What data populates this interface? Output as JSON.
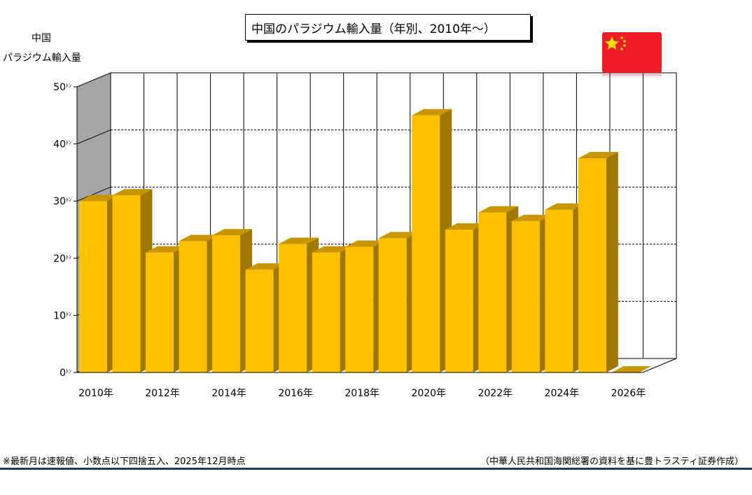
{
  "title": "中国のパラジウム輸入量（年別、2010年～）",
  "y_axis_label_line1": "中国",
  "y_axis_label_line2": "パラジウム輸入量",
  "footnote_left": "※最新月は速報値、小数点以下四捨五入、2025年12月時点",
  "footnote_right": "（中華人民共和国海関総署の資料を基に豊トラスティ証券作成）",
  "flag_icon": "china-flag-icon",
  "colors": {
    "bar_front": "#FFC000",
    "bar_side": "#A07800",
    "bar_top": "#C89600",
    "back_wall": "#FFFFFF",
    "side_wall": "#A6A6A6",
    "footer_rule": "#1F3A6B",
    "flag_red": "#EE1C25",
    "flag_star": "#FFDE00"
  },
  "chart_data": {
    "type": "bar",
    "title": "中国のパラジウム輸入量（年別、2010年～）",
    "ylabel": "中国 パラジウム輸入量",
    "unit": "トン",
    "ylim": [
      0,
      50
    ],
    "y_ticks": [
      0,
      10,
      20,
      30,
      40,
      50
    ],
    "y_tick_suffix": "ﾄﾝ",
    "x_tick_labels": [
      "2010年",
      "2012年",
      "2014年",
      "2016年",
      "2018年",
      "2020年",
      "2022年",
      "2024年",
      "2026年"
    ],
    "categories": [
      "2010",
      "2011",
      "2012",
      "2013",
      "2014",
      "2015",
      "2016",
      "2017",
      "2018",
      "2019",
      "2020",
      "2021",
      "2022",
      "2023",
      "2024",
      "2025",
      "2026"
    ],
    "values": [
      30,
      31,
      21,
      23,
      24,
      18,
      22.5,
      21,
      22,
      23.5,
      45,
      25,
      28,
      26.5,
      28.5,
      37.5,
      0
    ],
    "grid": "dashed horizontal, solid vertical",
    "legend": "none",
    "style": "3d"
  }
}
